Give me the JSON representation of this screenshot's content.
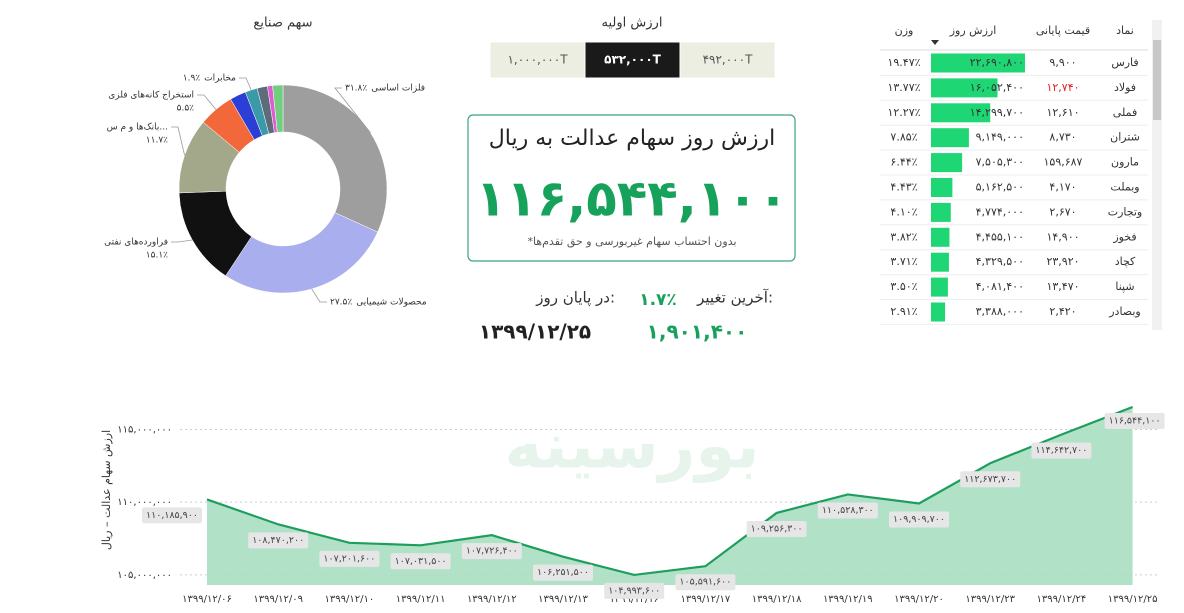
{
  "chart_data": [
    {
      "type": "pie",
      "title": "سهم صنایع",
      "categories": [
        "فلزات اساسی",
        "محصولات شیمیایی",
        "فراورده‌های نفتی",
        "بانک‌ها و م س...",
        "استخراج کانه‌های فلزی",
        null,
        "مخابرات",
        null,
        null,
        null
      ],
      "values": [
        31.8,
        27.5,
        15.1,
        11.7,
        5.5,
        2.5,
        1.9,
        1.6,
        0.8,
        1.6
      ],
      "value_labels": [
        "۳۱.۸٪",
        "۲۷.۵٪",
        "۱۵.۱٪",
        "۱۱.۷٪",
        "۵.۵٪",
        null,
        "۱.۹٪",
        null,
        null,
        null
      ],
      "colors": [
        "#9e9e9e",
        "#a9aeee",
        "#111111",
        "#a3a88b",
        "#f2683b",
        "#2b3fd6",
        "#3a9aa8",
        "#5d6b7a",
        "#e05bd0",
        "#6fcf7f"
      ]
    },
    {
      "type": "area",
      "ylabel": "ارزش سهام عدالت – ریال",
      "categories": [
        "۱۳۹۹/۱۲/۰۶",
        "۱۳۹۹/۱۲/۰۹",
        "۱۳۹۹/۱۲/۱۰",
        "۱۳۹۹/۱۲/۱۱",
        "۱۳۹۹/۱۲/۱۲",
        "۱۳۹۹/۱۲/۱۳",
        "۱۳۹۹/۱۲/۱۶",
        "۱۳۹۹/۱۲/۱۷",
        "۱۳۹۹/۱۲/۱۸",
        "۱۳۹۹/۱۲/۱۹",
        "۱۳۹۹/۱۲/۲۰",
        "۱۳۹۹/۱۲/۲۳",
        "۱۳۹۹/۱۲/۲۴",
        "۱۳۹۹/۱۲/۲۵"
      ],
      "values": [
        110185900,
        108470200,
        107201600,
        107031500,
        107726400,
        106251500,
        104993600,
        105591600,
        109256300,
        110528300,
        109909700,
        112673700,
        114642700,
        116544100
      ],
      "value_labels": [
        "۱۱۰,۱۸۵,۹۰۰",
        "۱۰۸,۴۷۰,۲۰۰",
        "۱۰۷,۲۰۱,۶۰۰",
        "۱۰۷,۰۳۱,۵۰۰",
        "۱۰۷,۷۲۶,۴۰۰",
        "۱۰۶,۲۵۱,۵۰۰",
        "۱۰۴,۹۹۳,۶۰۰",
        "۱۰۵,۵۹۱,۶۰۰",
        "۱۰۹,۲۵۶,۳۰۰",
        "۱۱۰,۵۲۸,۳۰۰",
        "۱۰۹,۹۰۹,۷۰۰",
        "۱۱۲,۶۷۳,۷۰۰",
        "۱۱۴,۶۴۲,۷۰۰",
        "۱۱۶,۵۴۴,۱۰۰"
      ],
      "ylim": [
        104300000,
        117300000
      ],
      "yticks": [
        {
          "value": 105000000,
          "label": "۱۰۵,۰۰۰,۰۰۰"
        },
        {
          "value": 110000000,
          "label": "۱۱۰,۰۰۰,۰۰۰"
        },
        {
          "value": 115000000,
          "label": "۱۱۵,۰۰۰,۰۰۰"
        }
      ],
      "color": "#1e9e5c",
      "fill": "#a8dfc2",
      "grid": true
    }
  ],
  "watermark": "بورسینه",
  "initial_value": {
    "title": "ارزش اولیه",
    "options": [
      "۱,۰۰۰,۰۰۰T",
      "۵۳۲,۰۰۰T",
      "۴۹۲,۰۰۰T"
    ],
    "selected": 1
  },
  "card": {
    "title": "ارزش روز سهام عدالت به ریال",
    "value": "۱۱۶,۵۴۴,۱۰۰",
    "note": "*بدون احتساب سهام غیربورسی و حق تقدم‌ها"
  },
  "summary": {
    "change_label": "آخرین تغییر:",
    "change": "۱.۷٪",
    "change_amount": "۱,۹۰۱,۴۰۰",
    "date_label": "در پایان روز:",
    "date": "۱۳۹۹/۱۲/۲۵"
  },
  "table": {
    "headers": [
      "نماد",
      "قیمت پایانی",
      "ارزش روز",
      "وزن"
    ],
    "rows": [
      [
        "فارس",
        "۹,۹۰۰",
        "۲۲,۶۹۰,۸۰۰",
        "۱۹.۴۷٪"
      ],
      [
        "فولاد",
        "۱۲,۷۴۰",
        "۱۶,۰۵۲,۴۰۰",
        "۱۳.۷۷٪"
      ],
      [
        "فملی",
        "۱۲,۶۱۰",
        "۱۴,۲۹۹,۷۰۰",
        "۱۲.۲۷٪"
      ],
      [
        "شتران",
        "۸,۷۳۰",
        "۹,۱۴۹,۰۰۰",
        "۷.۸۵٪"
      ],
      [
        "مارون",
        "۱۵۹,۶۸۷",
        "۷,۵۰۵,۳۰۰",
        "۶.۴۴٪"
      ],
      [
        "وبملت",
        "۴,۱۷۰",
        "۵,۱۶۲,۵۰۰",
        "۴.۴۳٪"
      ],
      [
        "وتجارت",
        "۲,۶۷۰",
        "۴,۷۷۴,۰۰۰",
        "۴.۱۰٪"
      ],
      [
        "فخوز",
        "۱۴,۹۰۰",
        "۴,۴۵۵,۱۰۰",
        "۳.۸۲٪"
      ],
      [
        "کچاد",
        "۲۳,۹۲۰",
        "۴,۳۲۹,۵۰۰",
        "۳.۷۱٪"
      ],
      [
        "شپنا",
        "۱۳,۴۷۰",
        "۴,۰۸۱,۴۰۰",
        "۳.۵۰٪"
      ],
      [
        "وبصادر",
        "۲,۴۲۰",
        "۳,۳۸۸,۰۰۰",
        "۲.۹۱٪"
      ]
    ]
  }
}
